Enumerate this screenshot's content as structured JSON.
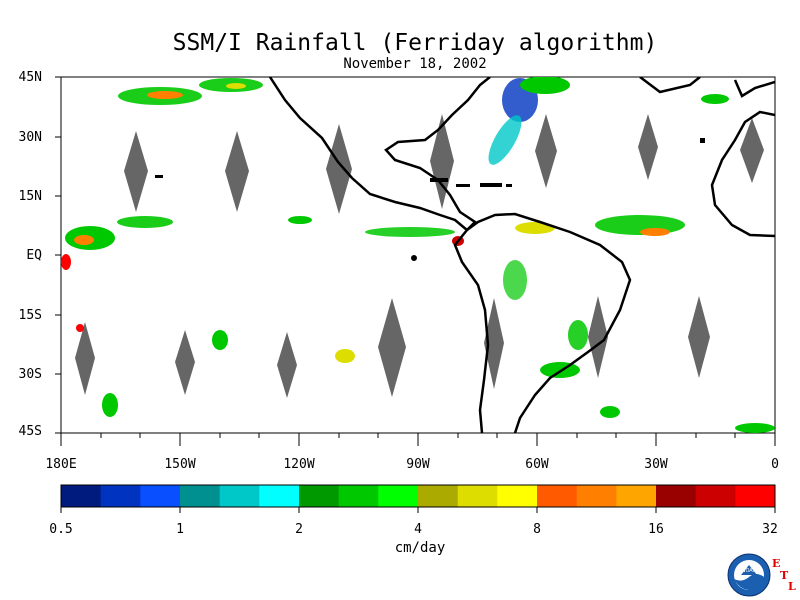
{
  "header": {
    "title": "SSM/I Rainfall (Ferriday algorithm)",
    "date": "November 18, 2002"
  },
  "map": {
    "projection": "equirectangular",
    "lon_range": [
      -180,
      0
    ],
    "lat_range": [
      -45,
      45
    ],
    "lat_labels": [
      "45N",
      "30N",
      "15N",
      "EQ",
      "15S",
      "30S",
      "45S"
    ],
    "lon_labels": [
      "180E",
      "150W",
      "120W",
      "90W",
      "60W",
      "30W",
      "0"
    ],
    "colors": {
      "land": "#000000",
      "missing_swath_gap": "#666666",
      "background": "#ffffff"
    }
  },
  "colorbar": {
    "unit": "cm/day",
    "tick_labels": [
      "0.5",
      "1",
      "2",
      "4",
      "8",
      "16",
      "32"
    ],
    "colors": [
      "#001b7e",
      "#0033c0",
      "#0a4fff",
      "#009090",
      "#00c8c8",
      "#00ffff",
      "#009900",
      "#00c800",
      "#00ff00",
      "#aaaa00",
      "#dddd00",
      "#ffff00",
      "#ff5a00",
      "#ff8000",
      "#ffa500",
      "#990000",
      "#cc0000",
      "#ff0000"
    ]
  },
  "logo": {
    "agency": "NOAA",
    "lab_letters": [
      "E",
      "T",
      "L"
    ]
  }
}
